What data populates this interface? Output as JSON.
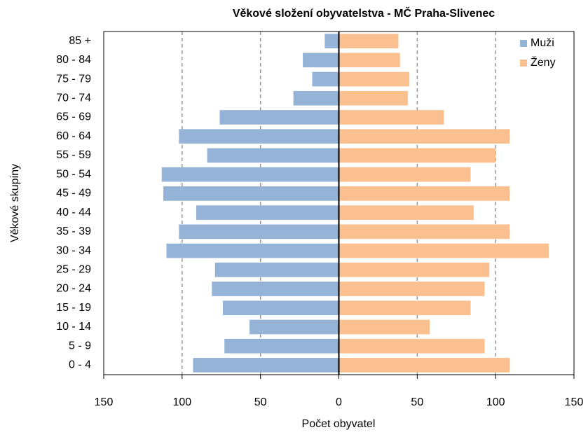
{
  "chart_data": {
    "type": "bar",
    "orientation": "horizontal",
    "title": "Věkové složení obyvatelstva - MČ Praha-Slivenec",
    "xlabel": "Počet obyvatel",
    "ylabel": "Věkové skupiny",
    "categories": [
      "0 -  4",
      "5 -  9",
      "10 - 14",
      "15 - 19",
      "20 - 24",
      "25 - 29",
      "30 - 34",
      "35 - 39",
      "40 - 44",
      "45 - 49",
      "50 - 54",
      "55 - 59",
      "60 - 64",
      "65 - 69",
      "70 - 74",
      "75 - 79",
      "80 - 84",
      "85 +"
    ],
    "series": [
      {
        "name": "Muži",
        "color": "#95b3d7",
        "values": [
          -93,
          -73,
          -57,
          -74,
          -81,
          -79,
          -110,
          -102,
          -91,
          -112,
          -113,
          -84,
          -102,
          -76,
          -29,
          -17,
          -23,
          -9
        ]
      },
      {
        "name": "Ženy",
        "color": "#fac090",
        "values": [
          109,
          93,
          58,
          84,
          93,
          96,
          134,
          109,
          86,
          109,
          84,
          100,
          109,
          67,
          44,
          45,
          39,
          38
        ]
      }
    ],
    "xlim": [
      -150,
      150
    ],
    "xticks": [
      {
        "value": -150,
        "label": "150"
      },
      {
        "value": -100,
        "label": "100"
      },
      {
        "value": -50,
        "label": "50"
      },
      0,
      50,
      100,
      150
    ],
    "grid": true,
    "legend": "top-right"
  }
}
